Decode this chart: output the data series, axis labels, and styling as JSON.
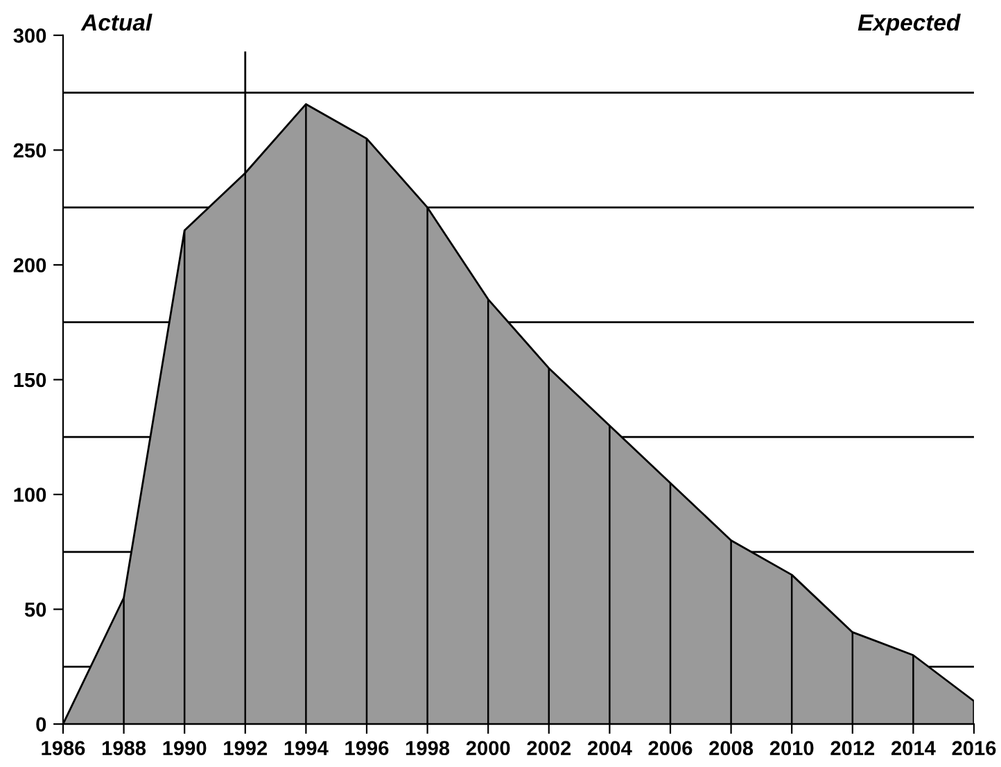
{
  "chart_data": {
    "type": "area",
    "x": [
      1986,
      1988,
      1990,
      1992,
      1994,
      1996,
      1998,
      2000,
      2002,
      2004,
      2006,
      2008,
      2010,
      2012,
      2014,
      2016
    ],
    "series": [
      {
        "color": "#9a9a9a",
        "values": [
          0,
          55,
          215,
          240,
          270,
          255,
          225,
          185,
          155,
          130,
          105,
          80,
          65,
          40,
          30,
          10
        ]
      }
    ],
    "xlim": [
      1986,
      2016
    ],
    "xticks": [
      1986,
      1988,
      1990,
      1992,
      1994,
      1996,
      1998,
      2000,
      2002,
      2004,
      2006,
      2008,
      2010,
      2012,
      2014,
      2016
    ],
    "ylim": [
      0,
      300
    ],
    "yticks": [
      0,
      50,
      100,
      150,
      200,
      250,
      300
    ],
    "ref_lines": [
      {
        "axis": "x",
        "value": 1992,
        "color": "#000000"
      },
      {
        "axis": "y",
        "value": 25,
        "color": "#000000"
      },
      {
        "axis": "y",
        "value": 75,
        "color": "#000000"
      },
      {
        "axis": "y",
        "value": 125,
        "color": "#000000"
      },
      {
        "axis": "y",
        "value": 175,
        "color": "#000000"
      },
      {
        "axis": "y",
        "value": 225,
        "color": "#000000"
      },
      {
        "axis": "y",
        "value": 275,
        "color": "#000000"
      }
    ],
    "annotations": [
      "Actual",
      "Expected"
    ],
    "grid": "x",
    "legend": false
  }
}
